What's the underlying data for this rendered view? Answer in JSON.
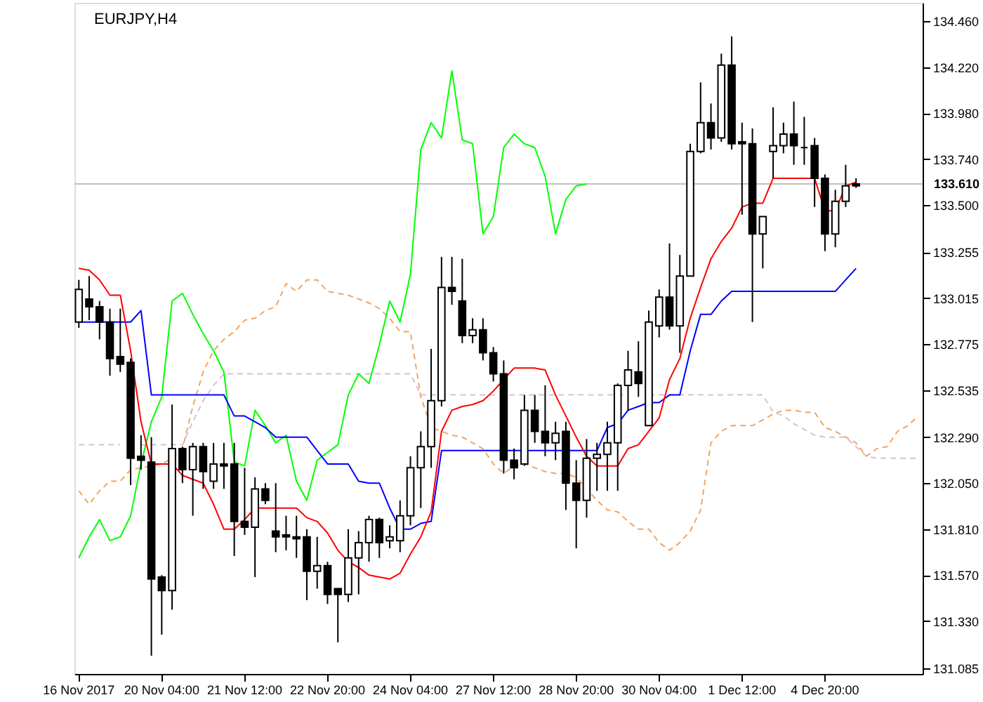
{
  "chart_data": {
    "type": "candlestick",
    "title": "EURJPY,H4",
    "categories": [
      "16 Nov 2017",
      null,
      null,
      null,
      null,
      null,
      null,
      null,
      "20 Nov 04:00",
      null,
      null,
      null,
      null,
      null,
      null,
      null,
      "21 Nov 12:00",
      null,
      null,
      null,
      null,
      null,
      null,
      null,
      "22 Nov 20:00",
      null,
      null,
      null,
      null,
      null,
      null,
      null,
      "24 Nov 04:00",
      null,
      null,
      null,
      null,
      null,
      null,
      null,
      "27 Nov 12:00",
      null,
      null,
      null,
      null,
      null,
      null,
      null,
      "28 Nov 20:00",
      null,
      null,
      null,
      null,
      null,
      null,
      null,
      "30 Nov 04:00",
      null,
      null,
      null,
      null,
      null,
      null,
      null,
      "1 Dec 12:00",
      null,
      null,
      null,
      null,
      null,
      null,
      null,
      "4 Dec 20:00",
      null,
      null,
      null,
      null,
      null,
      null,
      null,
      null,
      null
    ],
    "ohlc": [
      [
        132.89,
        133.11,
        132.86,
        133.06
      ],
      [
        133.01,
        133.13,
        132.9,
        132.97
      ],
      [
        132.97,
        133.0,
        132.8,
        132.89
      ],
      [
        132.89,
        132.96,
        132.61,
        132.7
      ],
      [
        132.71,
        132.96,
        132.63,
        132.67
      ],
      [
        132.68,
        132.7,
        132.04,
        132.18
      ],
      [
        132.19,
        132.3,
        132.12,
        132.17
      ],
      [
        132.16,
        132.29,
        131.15,
        131.55
      ],
      [
        131.56,
        131.57,
        131.26,
        131.49
      ],
      [
        131.49,
        132.46,
        131.39,
        132.23
      ],
      [
        132.23,
        132.24,
        132.05,
        132.12
      ],
      [
        132.12,
        132.26,
        131.88,
        132.24
      ],
      [
        132.24,
        132.26,
        132.02,
        132.11
      ],
      [
        132.06,
        132.26,
        132.02,
        132.15
      ],
      [
        132.15,
        132.26,
        132.02,
        132.14
      ],
      [
        132.15,
        132.26,
        131.67,
        131.85
      ],
      [
        131.85,
        132.13,
        131.78,
        131.82
      ],
      [
        131.82,
        132.08,
        131.56,
        132.02
      ],
      [
        132.02,
        132.05,
        131.94,
        131.96
      ],
      [
        131.8,
        132.05,
        131.69,
        131.77
      ],
      [
        131.78,
        131.88,
        131.7,
        131.77
      ],
      [
        131.77,
        131.88,
        131.66,
        131.76
      ],
      [
        131.77,
        131.81,
        131.44,
        131.59
      ],
      [
        131.59,
        131.77,
        131.5,
        131.62
      ],
      [
        131.62,
        131.64,
        131.42,
        131.47
      ],
      [
        131.5,
        131.5,
        131.22,
        131.47
      ],
      [
        131.47,
        131.81,
        131.43,
        131.66
      ],
      [
        131.66,
        131.8,
        131.47,
        131.74
      ],
      [
        131.74,
        131.88,
        131.64,
        131.86
      ],
      [
        131.86,
        131.87,
        131.66,
        131.74
      ],
      [
        131.75,
        131.83,
        131.71,
        131.77
      ],
      [
        131.75,
        131.96,
        131.69,
        131.88
      ],
      [
        131.88,
        132.19,
        131.83,
        132.13
      ],
      [
        132.13,
        132.32,
        131.92,
        132.24
      ],
      [
        132.24,
        132.75,
        132.13,
        132.48
      ],
      [
        132.48,
        133.23,
        132.45,
        133.07
      ],
      [
        133.07,
        133.23,
        132.98,
        133.05
      ],
      [
        133.0,
        133.22,
        132.78,
        132.82
      ],
      [
        132.82,
        132.91,
        132.78,
        132.85
      ],
      [
        132.85,
        132.91,
        132.69,
        132.73
      ],
      [
        132.73,
        132.76,
        132.58,
        132.62
      ],
      [
        132.62,
        132.69,
        132.1,
        132.17
      ],
      [
        132.17,
        132.23,
        132.07,
        132.13
      ],
      [
        132.15,
        132.51,
        132.14,
        132.43
      ],
      [
        132.43,
        132.51,
        132.26,
        132.32
      ],
      [
        132.32,
        132.56,
        132.19,
        132.26
      ],
      [
        132.26,
        132.37,
        132.17,
        132.31
      ],
      [
        132.32,
        132.37,
        131.91,
        132.05
      ],
      [
        132.05,
        132.17,
        131.71,
        131.96
      ],
      [
        131.96,
        132.28,
        131.87,
        132.18
      ],
      [
        132.18,
        132.26,
        132.01,
        132.2
      ],
      [
        132.2,
        132.37,
        132.01,
        132.26
      ],
      [
        132.26,
        132.57,
        132.01,
        132.56
      ],
      [
        132.56,
        132.74,
        132.43,
        132.64
      ],
      [
        132.63,
        132.79,
        132.5,
        132.57
      ],
      [
        132.35,
        132.95,
        132.35,
        132.89
      ],
      [
        132.87,
        133.06,
        132.81,
        133.02
      ],
      [
        133.02,
        133.3,
        132.85,
        132.87
      ],
      [
        132.87,
        133.24,
        132.73,
        133.13
      ],
      [
        133.13,
        133.82,
        133.13,
        133.78
      ],
      [
        133.78,
        134.14,
        133.77,
        133.93
      ],
      [
        133.93,
        134.03,
        133.79,
        133.85
      ],
      [
        133.85,
        134.29,
        133.83,
        134.23
      ],
      [
        134.23,
        134.38,
        133.79,
        133.82
      ],
      [
        133.83,
        133.93,
        133.45,
        133.82
      ],
      [
        133.82,
        133.9,
        132.89,
        133.35
      ],
      [
        133.35,
        133.44,
        133.17,
        133.44
      ],
      [
        133.78,
        134.01,
        133.64,
        133.81
      ],
      [
        133.81,
        133.93,
        133.77,
        133.87
      ],
      [
        133.87,
        134.04,
        133.71,
        133.81
      ],
      [
        133.8,
        133.96,
        133.71,
        133.8
      ],
      [
        133.81,
        133.85,
        133.49,
        133.64
      ],
      [
        133.64,
        133.66,
        133.26,
        133.35
      ],
      [
        133.35,
        133.58,
        133.28,
        133.52
      ],
      [
        133.52,
        133.71,
        133.49,
        133.6
      ],
      [
        133.61,
        133.64,
        133.59,
        133.6
      ],
      null,
      null,
      null,
      null,
      null,
      null
    ],
    "colors": [
      "#ffffff",
      "#000000",
      "#000000",
      "#000000",
      "#000000",
      "#000000",
      "#000000",
      "#000000",
      "#000000",
      "#ffffff",
      "#000000",
      "#ffffff",
      "#000000",
      "#ffffff",
      "#000000",
      "#000000",
      "#000000",
      "#ffffff",
      "#000000",
      "#000000",
      "#000000",
      "#000000",
      "#000000",
      "#ffffff",
      "#000000",
      "#000000",
      "#ffffff",
      "#ffffff",
      "#ffffff",
      "#000000",
      "#ffffff",
      "#ffffff",
      "#ffffff",
      "#ffffff",
      "#ffffff",
      "#ffffff",
      "#000000",
      "#000000",
      "#ffffff",
      "#000000",
      "#000000",
      "#000000",
      "#000000",
      "#ffffff",
      "#000000",
      "#000000",
      "#ffffff",
      "#000000",
      "#000000",
      "#ffffff",
      "#ffffff",
      "#ffffff",
      "#ffffff",
      "#ffffff",
      "#000000",
      "#ffffff",
      "#ffffff",
      "#000000",
      "#ffffff",
      "#ffffff",
      "#ffffff",
      "#000000",
      "#ffffff",
      "#000000",
      "#000000",
      "#000000",
      "#ffffff",
      "#ffffff",
      "#ffffff",
      "#000000",
      "#000000",
      "#000000",
      "#000000",
      "#ffffff",
      "#ffffff",
      "#000000",
      null,
      null,
      null,
      null,
      null,
      null
    ],
    "series": [
      {
        "type": "line",
        "color": "#f4a460",
        "line_style": "dashed",
        "values": [
          132.01,
          131.94,
          132.01,
          132.06,
          132.06,
          132.12,
          132.13,
          132.14,
          132.15,
          132.18,
          132.23,
          132.45,
          132.63,
          132.74,
          132.8,
          132.84,
          132.9,
          132.91,
          132.95,
          132.97,
          133.09,
          133.05,
          133.11,
          133.11,
          133.05,
          133.04,
          133.03,
          133.01,
          132.99,
          132.96,
          132.91,
          132.84,
          132.84,
          132.5,
          132.34,
          132.32,
          132.3,
          132.29,
          132.26,
          132.23,
          132.15,
          132.1,
          132.14,
          132.15,
          132.13,
          132.11,
          132.1,
          132.1,
          132.08,
          132.02,
          131.96,
          131.91,
          131.9,
          131.85,
          131.81,
          131.81,
          131.74,
          131.7,
          131.74,
          131.8,
          131.91,
          132.26,
          132.32,
          132.35,
          132.35,
          132.35,
          132.38,
          132.41,
          132.43,
          132.43,
          132.42,
          132.42,
          132.34,
          132.32,
          132.29,
          132.26,
          132.19,
          132.23,
          132.24,
          132.32,
          132.35,
          132.4
        ]
      },
      {
        "type": "line",
        "color": "#d8bfd8",
        "line_style": "dashed",
        "values": [
          132.25,
          132.25,
          132.25,
          132.25,
          132.25,
          null,
          132.25,
          132.25,
          132.25,
          132.25,
          132.25,
          132.37,
          132.48,
          132.56,
          132.62,
          132.62,
          132.62,
          132.62,
          132.62,
          132.62,
          132.62,
          132.62,
          132.62,
          132.62,
          132.62,
          132.62,
          132.62,
          132.62,
          132.62,
          132.62,
          132.62,
          132.62,
          132.62,
          132.51,
          132.51,
          132.51,
          132.51,
          132.51,
          132.51,
          132.51,
          132.51,
          132.51,
          132.51,
          132.51,
          132.51,
          132.51,
          132.51,
          132.51,
          132.51,
          132.51,
          132.51,
          132.51,
          132.51,
          132.51,
          null,
          132.51,
          132.51,
          132.51,
          132.51,
          132.51,
          132.51,
          132.51,
          132.51,
          132.51,
          132.51,
          132.51,
          132.51,
          132.42,
          132.4,
          132.36,
          132.33,
          132.3,
          132.29,
          132.29,
          132.29,
          132.24,
          132.19,
          132.18,
          132.18,
          132.18,
          132.18,
          132.18
        ]
      },
      {
        "type": "line",
        "color": "#00ff00",
        "line_style": "solid",
        "values": [
          131.66,
          131.77,
          131.86,
          131.75,
          131.77,
          131.88,
          132.15,
          132.37,
          132.5,
          133.0,
          133.04,
          132.93,
          132.83,
          132.74,
          132.63,
          132.16,
          132.14,
          132.43,
          132.35,
          132.26,
          132.3,
          132.06,
          131.96,
          132.17,
          132.21,
          132.25,
          132.51,
          132.62,
          132.57,
          132.77,
          133.0,
          132.89,
          133.14,
          133.79,
          133.93,
          133.85,
          134.2,
          133.84,
          133.82,
          133.35,
          133.44,
          133.8,
          133.87,
          133.82,
          133.8,
          133.65,
          133.35,
          133.53,
          133.6,
          133.61,
          null,
          null,
          null,
          null,
          null,
          null,
          null,
          null,
          null,
          null,
          null,
          null,
          null,
          null,
          null,
          null,
          null,
          null,
          null,
          null,
          null,
          null,
          null,
          null,
          null,
          null,
          null,
          null,
          null,
          null,
          null,
          null
        ]
      },
      {
        "type": "line",
        "color": "#0000ff",
        "line_style": "solid",
        "values": [
          132.89,
          132.89,
          132.89,
          132.89,
          132.89,
          132.89,
          132.95,
          132.51,
          132.51,
          132.51,
          132.51,
          132.51,
          132.51,
          132.51,
          132.51,
          132.4,
          132.4,
          132.37,
          132.34,
          132.29,
          132.29,
          132.29,
          132.29,
          132.22,
          132.15,
          132.15,
          132.15,
          132.06,
          132.05,
          132.05,
          131.92,
          131.81,
          131.81,
          131.84,
          131.85,
          132.22,
          132.22,
          132.22,
          132.22,
          132.22,
          132.22,
          132.22,
          132.22,
          132.22,
          132.22,
          132.22,
          132.22,
          132.22,
          132.22,
          132.22,
          132.22,
          132.34,
          132.36,
          132.43,
          132.45,
          132.47,
          132.47,
          132.51,
          132.51,
          132.74,
          132.93,
          132.93,
          133.0,
          133.05,
          133.05,
          133.05,
          133.05,
          133.05,
          133.05,
          133.05,
          133.05,
          133.05,
          133.05,
          133.05,
          133.11,
          133.17,
          null,
          null,
          null,
          null,
          null,
          null
        ]
      },
      {
        "type": "line",
        "color": "#ff0000",
        "line_style": "solid",
        "values": [
          133.17,
          133.16,
          133.11,
          133.03,
          133.03,
          132.74,
          132.37,
          132.15,
          132.15,
          132.15,
          132.09,
          132.07,
          132.05,
          131.94,
          131.81,
          131.81,
          131.86,
          131.92,
          131.92,
          131.92,
          131.92,
          131.92,
          131.87,
          131.85,
          131.79,
          131.7,
          131.64,
          131.61,
          131.57,
          131.56,
          131.55,
          131.58,
          131.68,
          131.77,
          131.9,
          132.32,
          132.43,
          132.45,
          132.46,
          132.48,
          132.53,
          132.59,
          132.65,
          132.65,
          132.65,
          132.64,
          132.51,
          132.4,
          132.29,
          132.19,
          132.14,
          132.14,
          132.14,
          132.23,
          132.25,
          132.32,
          132.39,
          132.59,
          132.7,
          132.91,
          133.07,
          133.22,
          133.31,
          133.38,
          133.49,
          133.51,
          133.51,
          133.64,
          133.64,
          133.64,
          133.64,
          133.64,
          133.47,
          133.47,
          133.6,
          133.62,
          null,
          null,
          null,
          null,
          null,
          null
        ]
      }
    ],
    "ylim": [
      131.055,
      134.555
    ],
    "yticks": [
      {
        "value": 131.085,
        "label": "131.085"
      },
      {
        "value": 131.33,
        "label": "131.330"
      },
      {
        "value": 131.57,
        "label": "131.570"
      },
      {
        "value": 131.81,
        "label": "131.810"
      },
      {
        "value": 132.05,
        "label": "132.050"
      },
      {
        "value": 132.29,
        "label": "132.290"
      },
      {
        "value": 132.535,
        "label": "132.535"
      },
      {
        "value": 132.775,
        "label": "132.775"
      },
      {
        "value": 133.015,
        "label": "133.015"
      },
      {
        "value": 133.255,
        "label": "133.255"
      },
      {
        "value": 133.5,
        "label": "133.500"
      },
      {
        "value": 133.74,
        "label": "133.740"
      },
      {
        "value": 133.98,
        "label": "133.980"
      },
      {
        "value": 134.22,
        "label": "134.220"
      },
      {
        "value": 134.46,
        "label": "134.460"
      }
    ],
    "ref_lines": [
      {
        "axis": "y",
        "value": 133.61,
        "label": "133.610",
        "color": "#c0c0c0"
      }
    ],
    "grid": false,
    "marker": "none"
  }
}
